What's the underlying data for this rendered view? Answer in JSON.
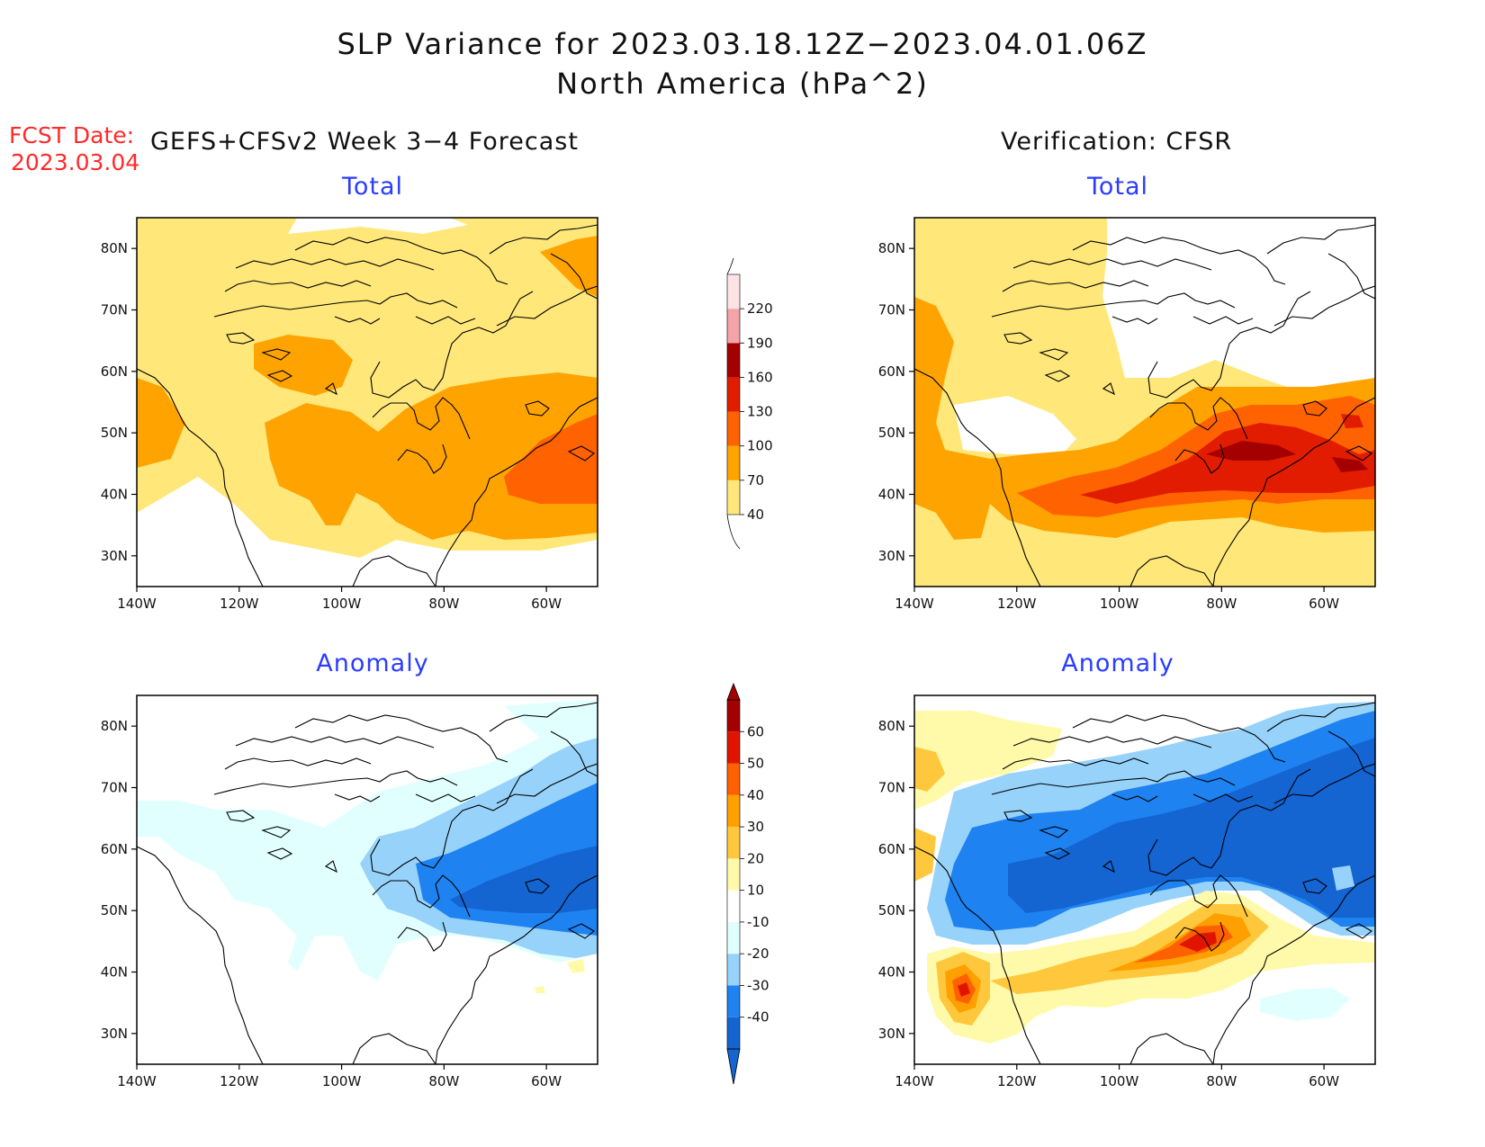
{
  "header": {
    "title_line1": "SLP Variance for 2023.03.18.12Z−2023.04.01.06Z",
    "title_line2": "North America (hPa^2)",
    "fcst_label": "FCST Date:",
    "fcst_date": "2023.03.04",
    "left_heading": "GEFS+CFSv2 Week 3−4 Forecast",
    "right_heading": "Verification: CFSR"
  },
  "panels": {
    "fc_total": {
      "title": "Total"
    },
    "fc_anom": {
      "title": "Anomaly"
    },
    "ver_total": {
      "title": "Total"
    },
    "ver_anom": {
      "title": "Anomaly"
    }
  },
  "axes": {
    "lon_labels": [
      "140W",
      "120W",
      "100W",
      "80W",
      "60W"
    ],
    "lat_labels": [
      "80N",
      "70N",
      "60N",
      "50N",
      "40N",
      "30N"
    ]
  },
  "colorbars": {
    "total": {
      "labels": [
        "40",
        "70",
        "100",
        "130",
        "160",
        "190",
        "220"
      ],
      "colors": [
        "#ffe77a",
        "#ffa300",
        "#ff6200",
        "#e11c00",
        "#a50000",
        "#f4a3a8",
        "#fde3e5"
      ]
    },
    "anomaly": {
      "labels": [
        "-40",
        "-30",
        "-20",
        "-10",
        "10",
        "20",
        "30",
        "40",
        "50",
        "60"
      ],
      "colors": [
        "#1464d2",
        "#1e82f0",
        "#96d2fa",
        "#e1ffff",
        "#ffffff",
        "#fffaaa",
        "#ffc83c",
        "#ffa000",
        "#ff6000",
        "#e11400",
        "#a50000"
      ]
    }
  },
  "colors": {
    "title_text": "#111111",
    "fcst_text": "#ff2a2a",
    "subtitle_text": "#2a3cff"
  }
}
